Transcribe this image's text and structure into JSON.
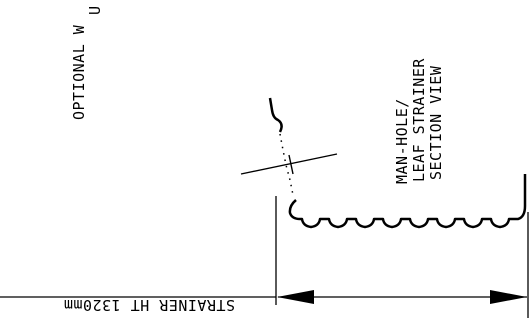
{
  "drawing": {
    "labels": {
      "optional_line1": "U",
      "optional_line2": "OPTIONAL W",
      "section_line1": "MAN-HOLE/",
      "section_line2": "LEAF STRAINER",
      "section_line3": "SECTION VIEW",
      "strainer_height": "STRAINER HT 1320mm"
    }
  }
}
